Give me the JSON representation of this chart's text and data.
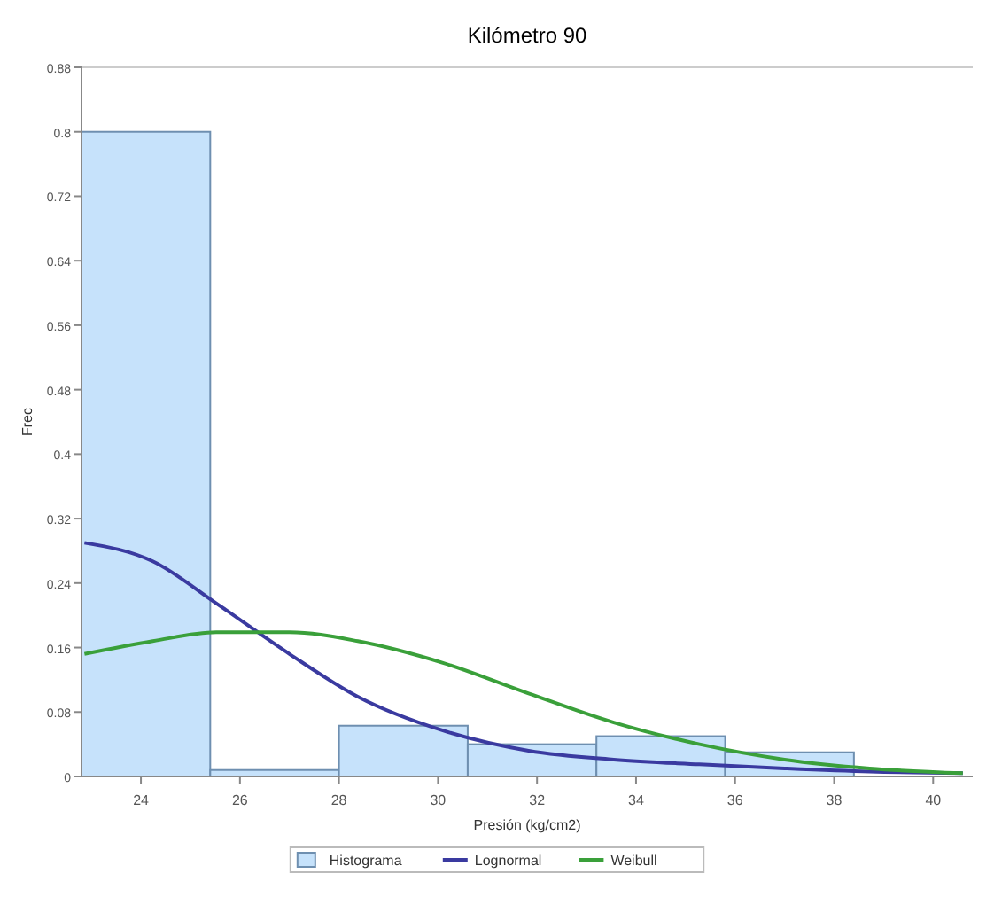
{
  "chart_data": {
    "type": "histogram",
    "title": "Kilómetro 90",
    "xlabel": "Presión (kg/cm2)",
    "ylabel": "Frec",
    "bins": [
      22.8,
      25.4,
      28,
      30.6,
      33.2,
      35.8,
      38.4
    ],
    "series": [
      {
        "name": "Histograma",
        "color": "#c6e2fb",
        "values": [
          0.8,
          0.008,
          0.063,
          0.04,
          0.05,
          0.03
        ]
      },
      {
        "type": "line",
        "name": "Lognormal",
        "color": "#3a3aa0",
        "x": [
          22.86,
          24.24,
          25.52,
          27.0,
          28.38,
          30.1,
          31.83,
          33.55,
          35.28,
          37.0,
          38.72,
          40.6
        ],
        "values": [
          0.29,
          0.267,
          0.215,
          0.152,
          0.099,
          0.057,
          0.032,
          0.021,
          0.015,
          0.01,
          0.006,
          0.004
        ]
      },
      {
        "type": "line",
        "name": "Weibull",
        "color": "#3aa03a",
        "x": [
          22.86,
          24.24,
          25.52,
          27.0,
          28.38,
          30.1,
          31.83,
          33.55,
          35.28,
          37.0,
          38.72,
          40.6
        ],
        "values": [
          0.152,
          0.168,
          0.179,
          0.179,
          0.168,
          0.141,
          0.103,
          0.067,
          0.04,
          0.021,
          0.01,
          0.004
        ]
      }
    ],
    "xlim": [
      22.8,
      40.8
    ],
    "xticks": [
      24,
      26,
      28,
      30,
      32,
      34,
      36,
      38,
      40
    ],
    "ylim": [
      0,
      0.88
    ],
    "yticks": [
      0,
      0.08,
      0.16,
      0.24,
      0.32,
      0.4,
      0.48,
      0.56,
      0.64,
      0.72,
      0.8,
      0.88
    ],
    "legend": "bottom",
    "line_style": "solid"
  }
}
